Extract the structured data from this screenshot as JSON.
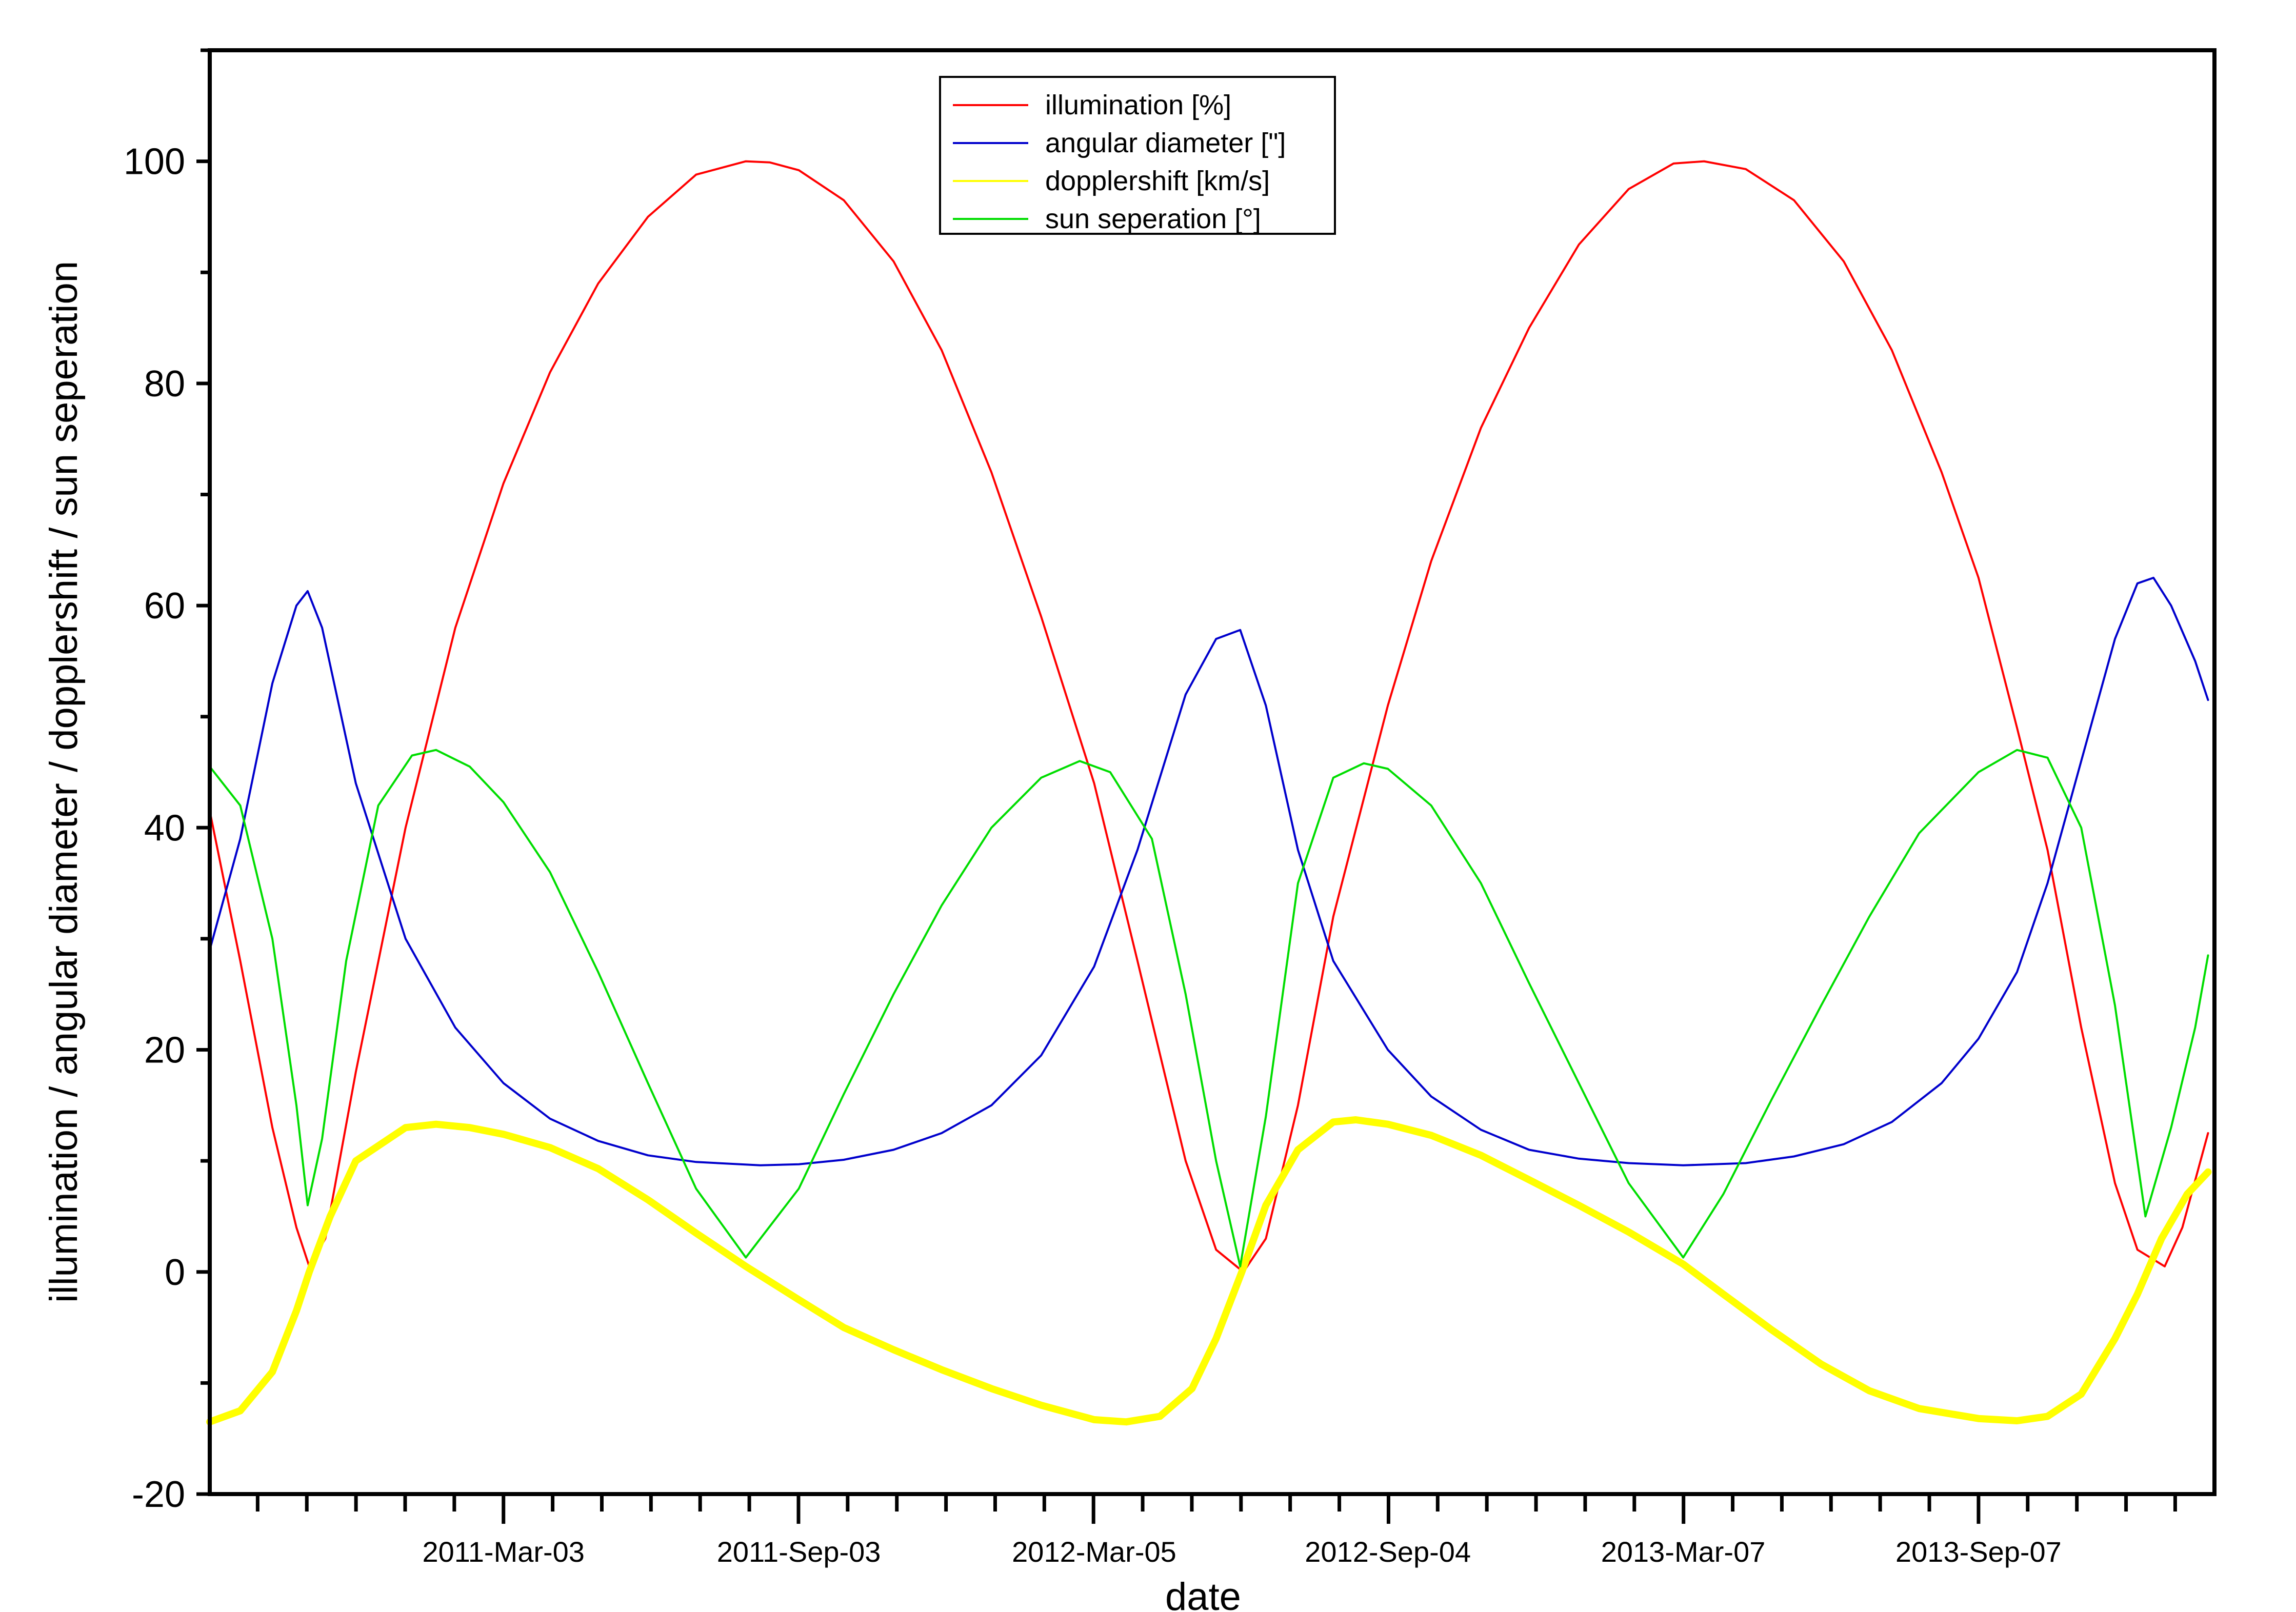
{
  "chart_data": {
    "type": "line",
    "title": "",
    "xlabel": "date",
    "ylabel": "illumination / angular diameter / dopplershift / sun seperation",
    "xlim": [
      "2010-09-01",
      "2014-02-01"
    ],
    "ylim": [
      -20,
      110
    ],
    "y_ticks": [
      -20,
      0,
      20,
      40,
      60,
      80,
      100
    ],
    "x_ticks": [
      {
        "date": "2011-03-03",
        "label": "2011-Mar-03"
      },
      {
        "date": "2011-09-03",
        "label": "2011-Sep-03"
      },
      {
        "date": "2012-03-05",
        "label": "2012-Mar-05"
      },
      {
        "date": "2012-09-04",
        "label": "2012-Sep-04"
      },
      {
        "date": "2013-03-07",
        "label": "2013-Mar-07"
      },
      {
        "date": "2013-09-07",
        "label": "2013-Sep-07"
      }
    ],
    "grid": false,
    "legend_position": "top-center",
    "series": [
      {
        "name": "illumination [%]",
        "color": "#ff0000",
        "points": [
          [
            "2010-09-01",
            41.5
          ],
          [
            "2010-09-20",
            28
          ],
          [
            "2010-10-10",
            13
          ],
          [
            "2010-10-25",
            4
          ],
          [
            "2010-11-02",
            0.5
          ],
          [
            "2010-11-12",
            3
          ],
          [
            "2010-12-01",
            18
          ],
          [
            "2011-01-01",
            40
          ],
          [
            "2011-02-01",
            58
          ],
          [
            "2011-03-03",
            71
          ],
          [
            "2011-04-01",
            81
          ],
          [
            "2011-05-01",
            89
          ],
          [
            "2011-06-01",
            95
          ],
          [
            "2011-07-01",
            98.8
          ],
          [
            "2011-08-01",
            100
          ],
          [
            "2011-08-16",
            99.9
          ],
          [
            "2011-09-03",
            99.2
          ],
          [
            "2011-10-01",
            96.5
          ],
          [
            "2011-11-01",
            91
          ],
          [
            "2011-12-01",
            83
          ],
          [
            "2012-01-01",
            72
          ],
          [
            "2012-02-01",
            59
          ],
          [
            "2012-03-05",
            44
          ],
          [
            "2012-04-01",
            28
          ],
          [
            "2012-05-01",
            10
          ],
          [
            "2012-05-20",
            2
          ],
          [
            "2012-06-06",
            0
          ],
          [
            "2012-06-20",
            3
          ],
          [
            "2012-07-10",
            15
          ],
          [
            "2012-08-01",
            32
          ],
          [
            "2012-09-04",
            51
          ],
          [
            "2012-10-01",
            64
          ],
          [
            "2012-11-01",
            76
          ],
          [
            "2012-12-01",
            85
          ],
          [
            "2013-01-01",
            92.5
          ],
          [
            "2013-02-01",
            97.5
          ],
          [
            "2013-03-01",
            99.8
          ],
          [
            "2013-03-20",
            100
          ],
          [
            "2013-04-15",
            99.3
          ],
          [
            "2013-05-15",
            96.5
          ],
          [
            "2013-06-15",
            91
          ],
          [
            "2013-07-15",
            83
          ],
          [
            "2013-08-15",
            72
          ],
          [
            "2013-09-07",
            62.5
          ],
          [
            "2013-10-01",
            49
          ],
          [
            "2013-10-20",
            38
          ],
          [
            "2013-11-10",
            22
          ],
          [
            "2013-12-01",
            8
          ],
          [
            "2013-12-15",
            2
          ],
          [
            "2014-01-01",
            0.5
          ],
          [
            "2014-01-12",
            4
          ],
          [
            "2014-01-28",
            12.5
          ]
        ]
      },
      {
        "name": "angular diameter [\"]",
        "color": "#0000cc",
        "points": [
          [
            "2010-09-01",
            29
          ],
          [
            "2010-09-20",
            39
          ],
          [
            "2010-10-10",
            53
          ],
          [
            "2010-10-25",
            60
          ],
          [
            "2010-11-01",
            61.3
          ],
          [
            "2010-11-10",
            58
          ],
          [
            "2010-12-01",
            44
          ],
          [
            "2011-01-01",
            30
          ],
          [
            "2011-02-01",
            22
          ],
          [
            "2011-03-03",
            17
          ],
          [
            "2011-04-01",
            13.8
          ],
          [
            "2011-05-01",
            11.8
          ],
          [
            "2011-06-01",
            10.5
          ],
          [
            "2011-07-01",
            9.9
          ],
          [
            "2011-08-10",
            9.6
          ],
          [
            "2011-09-03",
            9.7
          ],
          [
            "2011-10-01",
            10.1
          ],
          [
            "2011-11-01",
            11
          ],
          [
            "2011-12-01",
            12.5
          ],
          [
            "2012-01-01",
            15
          ],
          [
            "2012-02-01",
            19.5
          ],
          [
            "2012-03-05",
            27.5
          ],
          [
            "2012-04-01",
            38
          ],
          [
            "2012-05-01",
            52
          ],
          [
            "2012-05-20",
            57
          ],
          [
            "2012-06-04",
            57.8
          ],
          [
            "2012-06-20",
            51
          ],
          [
            "2012-07-10",
            38
          ],
          [
            "2012-08-01",
            28
          ],
          [
            "2012-09-04",
            20
          ],
          [
            "2012-10-01",
            15.8
          ],
          [
            "2012-11-01",
            12.8
          ],
          [
            "2012-12-01",
            11
          ],
          [
            "2013-01-01",
            10.2
          ],
          [
            "2013-02-01",
            9.8
          ],
          [
            "2013-03-07",
            9.6
          ],
          [
            "2013-04-15",
            9.8
          ],
          [
            "2013-05-15",
            10.4
          ],
          [
            "2013-06-15",
            11.5
          ],
          [
            "2013-07-15",
            13.5
          ],
          [
            "2013-08-15",
            17
          ],
          [
            "2013-09-07",
            21
          ],
          [
            "2013-10-01",
            27
          ],
          [
            "2013-10-20",
            35
          ],
          [
            "2013-11-10",
            46
          ],
          [
            "2013-12-01",
            57
          ],
          [
            "2013-12-15",
            62
          ],
          [
            "2013-12-25",
            62.5
          ],
          [
            "2014-01-05",
            60
          ],
          [
            "2014-01-20",
            55
          ],
          [
            "2014-01-28",
            51.5
          ]
        ]
      },
      {
        "name": "dopplershift [km/s]",
        "color": "#ffff00",
        "points": [
          [
            "2010-09-01",
            -13.5
          ],
          [
            "2010-09-20",
            -12.5
          ],
          [
            "2010-10-10",
            -9
          ],
          [
            "2010-10-25",
            -3.5
          ],
          [
            "2010-11-02",
            0
          ],
          [
            "2010-11-15",
            5
          ],
          [
            "2010-12-01",
            10
          ],
          [
            "2011-01-01",
            13
          ],
          [
            "2011-01-20",
            13.3
          ],
          [
            "2011-02-10",
            13
          ],
          [
            "2011-03-03",
            12.4
          ],
          [
            "2011-04-01",
            11.2
          ],
          [
            "2011-05-01",
            9.3
          ],
          [
            "2011-06-01",
            6.5
          ],
          [
            "2011-07-01",
            3.5
          ],
          [
            "2011-08-01",
            0.5
          ],
          [
            "2011-09-03",
            -2.5
          ],
          [
            "2011-10-01",
            -5
          ],
          [
            "2011-11-01",
            -7
          ],
          [
            "2011-12-01",
            -8.8
          ],
          [
            "2012-01-01",
            -10.5
          ],
          [
            "2012-02-01",
            -12
          ],
          [
            "2012-03-05",
            -13.3
          ],
          [
            "2012-03-25",
            -13.5
          ],
          [
            "2012-04-15",
            -13
          ],
          [
            "2012-05-05",
            -10.5
          ],
          [
            "2012-05-20",
            -6
          ],
          [
            "2012-06-05",
            0
          ],
          [
            "2012-06-20",
            6
          ],
          [
            "2012-07-10",
            11
          ],
          [
            "2012-08-01",
            13.5
          ],
          [
            "2012-08-15",
            13.7
          ],
          [
            "2012-09-04",
            13.3
          ],
          [
            "2012-10-01",
            12.3
          ],
          [
            "2012-11-01",
            10.5
          ],
          [
            "2012-12-01",
            8.3
          ],
          [
            "2013-01-01",
            6
          ],
          [
            "2013-02-01",
            3.6
          ],
          [
            "2013-03-07",
            0.7
          ],
          [
            "2013-04-01",
            -2
          ],
          [
            "2013-05-01",
            -5.2
          ],
          [
            "2013-06-01",
            -8.3
          ],
          [
            "2013-07-01",
            -10.7
          ],
          [
            "2013-08-01",
            -12.3
          ],
          [
            "2013-09-07",
            -13.2
          ],
          [
            "2013-10-01",
            -13.4
          ],
          [
            "2013-10-20",
            -13
          ],
          [
            "2013-11-10",
            -11
          ],
          [
            "2013-12-01",
            -6
          ],
          [
            "2013-12-15",
            -2
          ],
          [
            "2013-12-30",
            3
          ],
          [
            "2014-01-15",
            7
          ],
          [
            "2014-01-28",
            9
          ]
        ]
      },
      {
        "name": "sun seperation [°]",
        "color": "#00dd00",
        "points": [
          [
            "2010-09-01",
            45.5
          ],
          [
            "2010-09-20",
            42
          ],
          [
            "2010-10-10",
            30
          ],
          [
            "2010-10-25",
            15
          ],
          [
            "2010-11-01",
            6
          ],
          [
            "2010-11-10",
            12
          ],
          [
            "2010-11-25",
            28
          ],
          [
            "2010-12-15",
            42
          ],
          [
            "2011-01-05",
            46.5
          ],
          [
            "2011-01-20",
            47
          ],
          [
            "2011-02-10",
            45.5
          ],
          [
            "2011-03-03",
            42.3
          ],
          [
            "2011-04-01",
            36
          ],
          [
            "2011-05-01",
            27
          ],
          [
            "2011-06-01",
            17
          ],
          [
            "2011-07-01",
            7.5
          ],
          [
            "2011-08-01",
            1.3
          ],
          [
            "2011-09-03",
            7.5
          ],
          [
            "2011-10-01",
            16
          ],
          [
            "2011-11-01",
            25
          ],
          [
            "2011-12-01",
            33
          ],
          [
            "2012-01-01",
            40
          ],
          [
            "2012-02-01",
            44.5
          ],
          [
            "2012-02-25",
            46
          ],
          [
            "2012-03-15",
            45
          ],
          [
            "2012-04-10",
            39
          ],
          [
            "2012-05-01",
            25
          ],
          [
            "2012-05-20",
            10
          ],
          [
            "2012-06-04",
            0.5
          ],
          [
            "2012-06-20",
            14
          ],
          [
            "2012-07-10",
            35
          ],
          [
            "2012-08-01",
            44.5
          ],
          [
            "2012-08-20",
            45.8
          ],
          [
            "2012-09-04",
            45.3
          ],
          [
            "2012-10-01",
            42
          ],
          [
            "2012-11-01",
            35
          ],
          [
            "2012-12-01",
            26
          ],
          [
            "2013-01-01",
            17
          ],
          [
            "2013-02-01",
            8
          ],
          [
            "2013-03-07",
            1.3
          ],
          [
            "2013-04-01",
            7
          ],
          [
            "2013-05-01",
            15.5
          ],
          [
            "2013-06-01",
            24
          ],
          [
            "2013-07-01",
            32
          ],
          [
            "2013-08-01",
            39.5
          ],
          [
            "2013-09-07",
            45
          ],
          [
            "2013-10-01",
            47
          ],
          [
            "2013-10-20",
            46.3
          ],
          [
            "2013-11-10",
            40
          ],
          [
            "2013-12-01",
            24
          ],
          [
            "2013-12-20",
            5
          ],
          [
            "2014-01-05",
            13
          ],
          [
            "2014-01-20",
            22
          ],
          [
            "2014-01-28",
            28.5
          ]
        ]
      }
    ]
  }
}
